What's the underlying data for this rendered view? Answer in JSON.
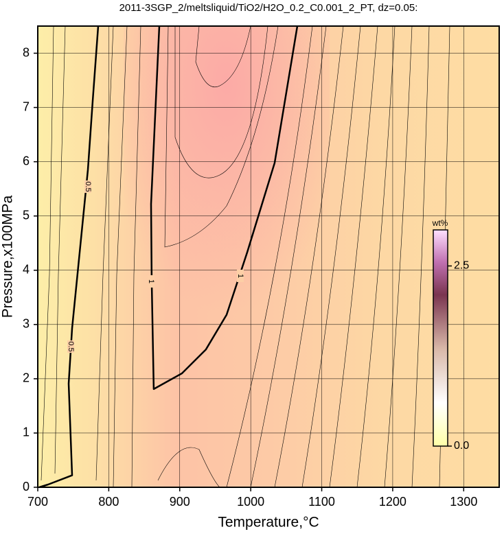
{
  "chart_data": {
    "type": "contour",
    "title": "2011-3SGP_2/meltsliquid/TiO2/H2O_0.2_C0.001_2_PT, dz=0.05:",
    "xlabel": "Temperature,°C",
    "ylabel": "Pressure,x100MPa",
    "xlim": [
      700,
      1350
    ],
    "ylim": [
      0,
      8.5
    ],
    "xticks": [
      700,
      800,
      900,
      1000,
      1100,
      1200,
      1300
    ],
    "yticks": [
      0,
      1,
      2,
      3,
      4,
      5,
      6,
      7,
      8
    ],
    "grid": true,
    "series": [
      {
        "name": "0.5",
        "color": "#000000",
        "x": [
          702,
          714.5,
          748.4,
          743.5,
          748.4,
          760.9,
          770.6,
          777.4,
          785.1
        ],
        "y": [
          0,
          0.05,
          0.22,
          1.91,
          2.93,
          4.58,
          5.85,
          7.12,
          8.5
        ]
      },
      {
        "name": "1",
        "color": "#000000",
        "x": [
          871.2,
          859.6,
          860.5,
          863.4,
          903.1,
          936.9,
          966,
          995,
          1033.7,
          1065.6
        ],
        "y": [
          8.5,
          5.22,
          3.82,
          1.81,
          2.1,
          2.54,
          3.18,
          4.33,
          5.98,
          8.5
        ]
      }
    ],
    "colorbar": {
      "label": "wt%",
      "lim": [
        0,
        3.0
      ],
      "ticks": [
        {
          "value": 0,
          "label": "0.0"
        },
        2.5
      ]
    }
  }
}
